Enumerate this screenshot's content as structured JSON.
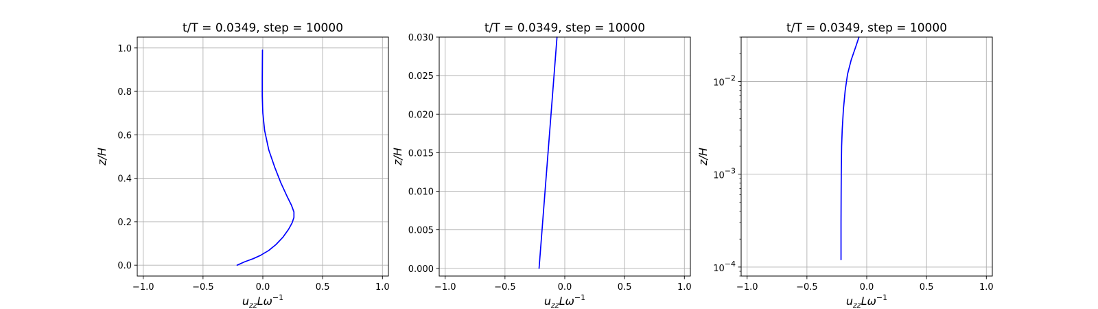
{
  "figure": {
    "background": "#ffffff",
    "line_color": "#0000ff",
    "grid_color": "#b0b0b0"
  },
  "chart_data": [
    {
      "type": "line",
      "title": "t/T = 0.0349, step = 10000",
      "xlabel": {
        "base": "u",
        "sub": "zz",
        "mid": "L",
        "greek": "ω",
        "sup": "−1"
      },
      "ylabel": "z/H",
      "xlim": [
        -1.05,
        1.05
      ],
      "ylim": [
        -0.05,
        1.05
      ],
      "yscale": "linear",
      "grid": true,
      "x_ticks": [
        -1.0,
        -0.5,
        0.0,
        0.5,
        1.0
      ],
      "x_tick_labels": [
        "−1.0",
        "−0.5",
        "0.0",
        "0.5",
        "1.0"
      ],
      "y_ticks": [
        0.0,
        0.2,
        0.4,
        0.6,
        0.8,
        1.0
      ],
      "y_tick_labels": [
        "0.0",
        "0.2",
        "0.4",
        "0.6",
        "0.8",
        "1.0"
      ],
      "series": [
        {
          "x": [
            -0.215,
            -0.15,
            -0.08,
            -0.02,
            0.05,
            0.11,
            0.17,
            0.215,
            0.245,
            0.26,
            0.26,
            0.24,
            0.2,
            0.15,
            0.1,
            0.05,
            0.015,
            0.0,
            -0.005,
            -0.005,
            -0.004,
            -0.003
          ],
          "y": [
            0.0,
            0.016,
            0.03,
            0.045,
            0.068,
            0.095,
            0.13,
            0.165,
            0.195,
            0.22,
            0.245,
            0.275,
            0.32,
            0.38,
            0.45,
            0.53,
            0.62,
            0.7,
            0.78,
            0.86,
            0.93,
            0.99
          ]
        }
      ]
    },
    {
      "type": "line",
      "title": "t/T = 0.0349, step = 10000",
      "xlabel": {
        "base": "u",
        "sub": "zz",
        "mid": "L",
        "greek": "ω",
        "sup": "−1"
      },
      "ylabel": "z/H",
      "xlim": [
        -1.05,
        1.05
      ],
      "ylim": [
        -0.001,
        0.03
      ],
      "yscale": "linear",
      "grid": true,
      "x_ticks": [
        -1.0,
        -0.5,
        0.0,
        0.5,
        1.0
      ],
      "x_tick_labels": [
        "−1.0",
        "−0.5",
        "0.0",
        "0.5",
        "1.0"
      ],
      "y_ticks": [
        0.0,
        0.005,
        0.01,
        0.015,
        0.02,
        0.025,
        0.03
      ],
      "y_tick_labels": [
        "0.000",
        "0.005",
        "0.010",
        "0.015",
        "0.020",
        "0.025",
        "0.030"
      ],
      "series": [
        {
          "x": [
            -0.215,
            -0.19,
            -0.165,
            -0.14,
            -0.115,
            -0.09,
            -0.065
          ],
          "y": [
            0.0,
            0.005,
            0.01,
            0.015,
            0.02,
            0.025,
            0.03
          ]
        }
      ]
    },
    {
      "type": "line",
      "title": "t/T = 0.0349, step = 10000",
      "xlabel": {
        "base": "u",
        "sub": "zz",
        "mid": "L",
        "greek": "ω",
        "sup": "−1"
      },
      "ylabel": "z/H",
      "xlim": [
        -1.05,
        1.05
      ],
      "ylim": [
        8e-05,
        0.03
      ],
      "yscale": "log",
      "grid": true,
      "x_ticks": [
        -1.0,
        -0.5,
        0.0,
        0.5,
        1.0
      ],
      "x_tick_labels": [
        "−1.0",
        "−0.5",
        "0.0",
        "0.5",
        "1.0"
      ],
      "y_ticks": [
        0.0001,
        0.001,
        0.01
      ],
      "y_tick_labels": [
        {
          "base": "10",
          "exp": "−4"
        },
        {
          "base": "10",
          "exp": "−3"
        },
        {
          "base": "10",
          "exp": "−2"
        }
      ],
      "series": [
        {
          "x": [
            -0.215,
            -0.215,
            -0.214,
            -0.213,
            -0.21,
            -0.205,
            -0.195,
            -0.18,
            -0.16,
            -0.13,
            -0.09,
            -0.065
          ],
          "y": [
            0.00012,
            0.0003,
            0.0006,
            0.001,
            0.002,
            0.003,
            0.005,
            0.008,
            0.012,
            0.017,
            0.024,
            0.03
          ]
        }
      ]
    }
  ]
}
